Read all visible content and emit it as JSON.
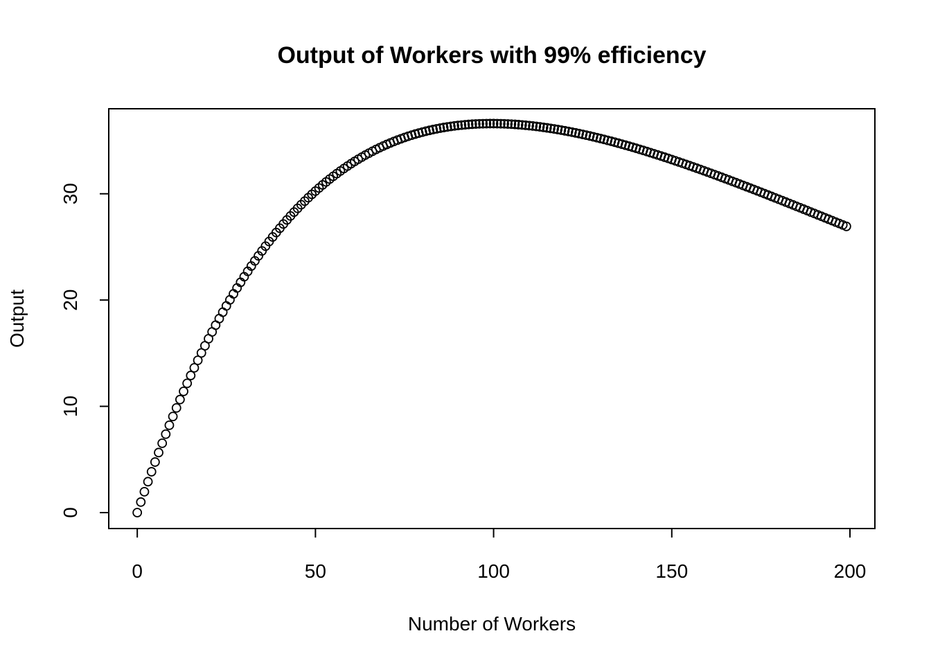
{
  "chart_data": {
    "type": "scatter",
    "title": "Output of Workers with 99% efficiency",
    "xlabel": "Number of Workers",
    "ylabel": "Output",
    "x_range": [
      0,
      199
    ],
    "xlim": [
      -8,
      207
    ],
    "ylim": [
      -1.5,
      38
    ],
    "x_ticks": [
      {
        "value": 0,
        "label": "0"
      },
      {
        "value": 50,
        "label": "50"
      },
      {
        "value": 100,
        "label": "100"
      },
      {
        "value": 150,
        "label": "150"
      },
      {
        "value": 200,
        "label": "200"
      }
    ],
    "y_ticks": [
      {
        "value": 0,
        "label": "0"
      },
      {
        "value": 10,
        "label": "10"
      },
      {
        "value": 20,
        "label": "20"
      },
      {
        "value": 30,
        "label": "30"
      }
    ],
    "points_per_unit": 1,
    "y_formula": "y = x * 0.99^x",
    "grid": false,
    "legend": "none",
    "marker": "open-circle",
    "color": "#000000"
  }
}
